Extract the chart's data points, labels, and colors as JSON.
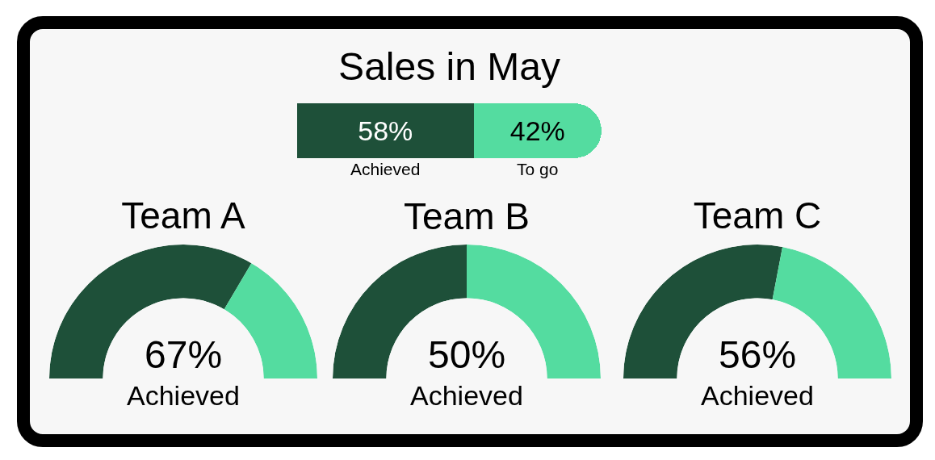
{
  "chart_data": [
    {
      "type": "bar",
      "title": "Sales in May",
      "orientation": "horizontal",
      "stacked": true,
      "categories": [
        null
      ],
      "series": [
        {
          "name": "Achieved",
          "color": "#1e5039",
          "values": [
            58
          ],
          "value_labels": [
            "58%"
          ]
        },
        {
          "name": "To go",
          "color": "#54dca0",
          "values": [
            42
          ],
          "value_labels": [
            "42%"
          ]
        }
      ],
      "xlim": [
        0,
        100
      ],
      "tick_labels": false
    },
    {
      "type": "donut",
      "title": "Team A",
      "categories": [
        "Achieved",
        null
      ],
      "values": [
        67,
        33
      ],
      "colors": [
        "#1e5039",
        "#54dca0"
      ],
      "value_labels": [
        "67%",
        null
      ]
    },
    {
      "type": "donut",
      "title": "Team B",
      "categories": [
        "Achieved",
        null
      ],
      "values": [
        50,
        50
      ],
      "colors": [
        "#1e5039",
        "#54dca0"
      ],
      "value_labels": [
        "50%",
        null
      ]
    },
    {
      "type": "donut",
      "title": "Team C",
      "categories": [
        "Achieved",
        null
      ],
      "values": [
        56,
        44
      ],
      "colors": [
        "#1e5039",
        "#54dca0"
      ],
      "value_labels": [
        "56%",
        null
      ]
    }
  ]
}
